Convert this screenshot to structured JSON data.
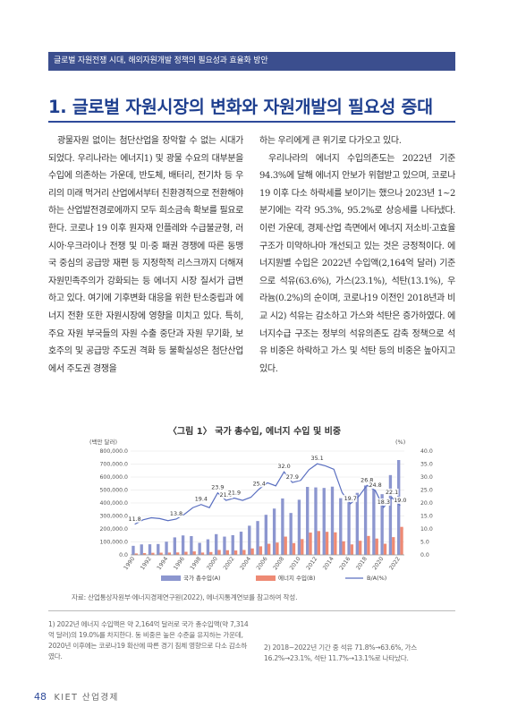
{
  "header": {
    "text": "글로벌 자원전쟁 시대, 해외자원개발 정책의 필요성과 효율화 방안"
  },
  "section": {
    "title": "1. 글로벌 자원시장의 변화와 자원개발의 필요성 증대"
  },
  "body": {
    "left_paragraph": "광물자원 없이는 첨단산업을 장악할 수 없는 시대가 되었다. 우리나라는 에너지1) 및 광물 수요의 대부분을 수입에 의존하는 가운데, 반도체, 배터리, 전기차 등 우리의 미래 먹거리 산업에서부터 친환경적으로 전환해야 하는 산업발전경로에까지 모두 희소금속 확보를 필요로 한다. 코로나 19 이후 원자재 인플레와 수급불균형, 러시아·우크라이나 전쟁 및 미·중 패권 경쟁에 따른 동맹국 중심의 공급망 재편 등 지정학적 리스크까지 더해져 자원민족주의가 강화되는 등 에너지 시장 질서가 급변하고 있다. 여기에 기후변화 대응을 위한 탄소중립과 에너지 전환 또한 자원시장에 영향을 미치고 있다. 특히, 주요 자원 부국들의 자원 수출 중단과 자원 무기화, 보호주의 및 공급망 주도권 격화 등 불확실성은 첨단산업에서 주도권 경쟁을",
    "right_paragraph_1": "하는 우리에게 큰 위기로 다가오고 있다.",
    "right_paragraph_2": "우리나라의 에너지 수입의존도는 2022년 기준 94.3%에 달해 에너지 안보가 위협받고 있으며, 코로나19 이후 다소 하락세를 보이기는 했으나 2023년 1~2분기에는 각각 95.3%, 95.2%로 상승세를 나타냈다. 이런 가운데, 경제·산업 측면에서 에너지 저소비·고효율 구조가 미약하나마 개선되고 있는 것은 긍정적이다. 에너지원별 수입은 2022년 수입액(2,164억 달러) 기준으로 석유(63.6%), 가스(23.1%), 석탄(13.1%), 우라늄(0.2%)의 순이며, 코로나19 이전인 2018년과 비교 시2) 석유는 감소하고 가스와 석탄은 증가하였다. 에너지수급 구조는 정부의 석유의존도 감축 정책으로 석유 비중은 하락하고 가스 및 석탄 등의 비중은 높아지고 있다."
  },
  "figure": {
    "title": "〈그림 1〉 국가 총수입, 에너지 수입 및 비중",
    "source": "자료: 산업통상자원부·에너지경제연구원(2022), 에너지통계연보를 참고하여 작성."
  },
  "chart_data": {
    "type": "bar",
    "left_axis_unit": "(백만 달러)",
    "right_axis_unit": "(%)",
    "left_ticks": [
      "800,000.0",
      "700,000.0",
      "600,000.0",
      "500,000.0",
      "400,000.0",
      "300,000.0",
      "200,000.0",
      "100,000.0",
      "0.0"
    ],
    "right_ticks": [
      "40.0",
      "35.0",
      "30.0",
      "25.0",
      "20.0",
      "15.0",
      "10.0",
      "5.0",
      "0.0"
    ],
    "ylim_left": [
      0,
      800000
    ],
    "ylim_right": [
      0,
      40
    ],
    "x": [
      1990,
      1991,
      1992,
      1993,
      1994,
      1995,
      1996,
      1997,
      1998,
      1999,
      2000,
      2001,
      2002,
      2003,
      2004,
      2005,
      2006,
      2007,
      2008,
      2009,
      2010,
      2011,
      2012,
      2013,
      2014,
      2015,
      2016,
      2017,
      2018,
      2019,
      2020,
      2021,
      2022
    ],
    "x_tick_labels": [
      "1990",
      "1992",
      "1994",
      "1996",
      "1998",
      "2000",
      "2002",
      "2004",
      "2006",
      "2008",
      "2010",
      "2012",
      "2014",
      "2016",
      "2018",
      "2020",
      "2022"
    ],
    "series": [
      {
        "name": "국가 총수입(A)",
        "color": "#8c96cf",
        "axis": "left",
        "values": [
          70000,
          81000,
          82000,
          84000,
          102000,
          135000,
          150000,
          145000,
          93000,
          120000,
          160000,
          141000,
          152000,
          179000,
          225000,
          261000,
          309000,
          357000,
          435000,
          323000,
          425000,
          524000,
          520000,
          516000,
          526000,
          437000,
          406000,
          478000,
          535000,
          503000,
          468000,
          615000,
          731000
        ]
      },
      {
        "name": "에너지 수입(B)",
        "color": "#ee8a74",
        "axis": "left",
        "values": [
          11000,
          14000,
          16000,
          17000,
          18000,
          19000,
          24000,
          27000,
          18000,
          22000,
          38000,
          36000,
          34000,
          38000,
          50000,
          66000,
          86000,
          95000,
          141000,
          91000,
          122000,
          172000,
          184000,
          178000,
          174000,
          105000,
          81000,
          109000,
          146000,
          126000,
          86000,
          137000,
          216000
        ]
      },
      {
        "name": "B/A(%)",
        "color": "#5a6fc0",
        "axis": "right",
        "values": [
          11.8,
          13.5,
          14.3,
          14.0,
          13.2,
          13.8,
          15.7,
          18.2,
          19.4,
          18.2,
          23.9,
          21.0,
          21.9,
          21.0,
          22.2,
          25.4,
          27.8,
          26.6,
          32.0,
          27.9,
          28.7,
          32.8,
          35.1,
          34.3,
          33.0,
          24.0,
          19.7,
          22.5,
          26.8,
          24.8,
          18.3,
          22.1,
          19.0
        ]
      }
    ],
    "data_labels": [
      {
        "year": 1990,
        "text": "11.8"
      },
      {
        "year": 1995,
        "text": "13.8"
      },
      {
        "year": 1998,
        "text": "19.4"
      },
      {
        "year": 2000,
        "text": "23.9"
      },
      {
        "year": 2001,
        "text": "21.0"
      },
      {
        "year": 2002,
        "text": "21.9"
      },
      {
        "year": 2005,
        "text": "25.4"
      },
      {
        "year": 2008,
        "text": "32.0"
      },
      {
        "year": 2009,
        "text": "27.9"
      },
      {
        "year": 2012,
        "text": "35.1"
      },
      {
        "year": 2016,
        "text": "19.7"
      },
      {
        "year": 2018,
        "text": "26.8"
      },
      {
        "year": 2019,
        "text": "24.8"
      },
      {
        "year": 2020,
        "text": "18.3"
      },
      {
        "year": 2021,
        "text": "22.1"
      },
      {
        "year": 2022,
        "text": "19.0"
      }
    ],
    "legend_position": "bottom"
  },
  "footnotes": {
    "fn1": "1) 2022년 에너지 수입액은 약 2,164억 달러로 국가 총수입액(약 7,314억 달러)의 19.0%를 차지한다. 동 비중은 높은 수준을 유지하는 가운데, 2020년 이후에는 코로나19 확산에 따른 경기 침체 영향으로 다소 감소하였다.",
    "fn2": "2) 2018~2022년 기간 중 석유 71.8%→63.6%, 가스 16.2%→23.1%, 석탄 11.7%→13.1%로 나타났다."
  },
  "footer": {
    "page_number": "48",
    "journal": "KIET 산업경제"
  }
}
